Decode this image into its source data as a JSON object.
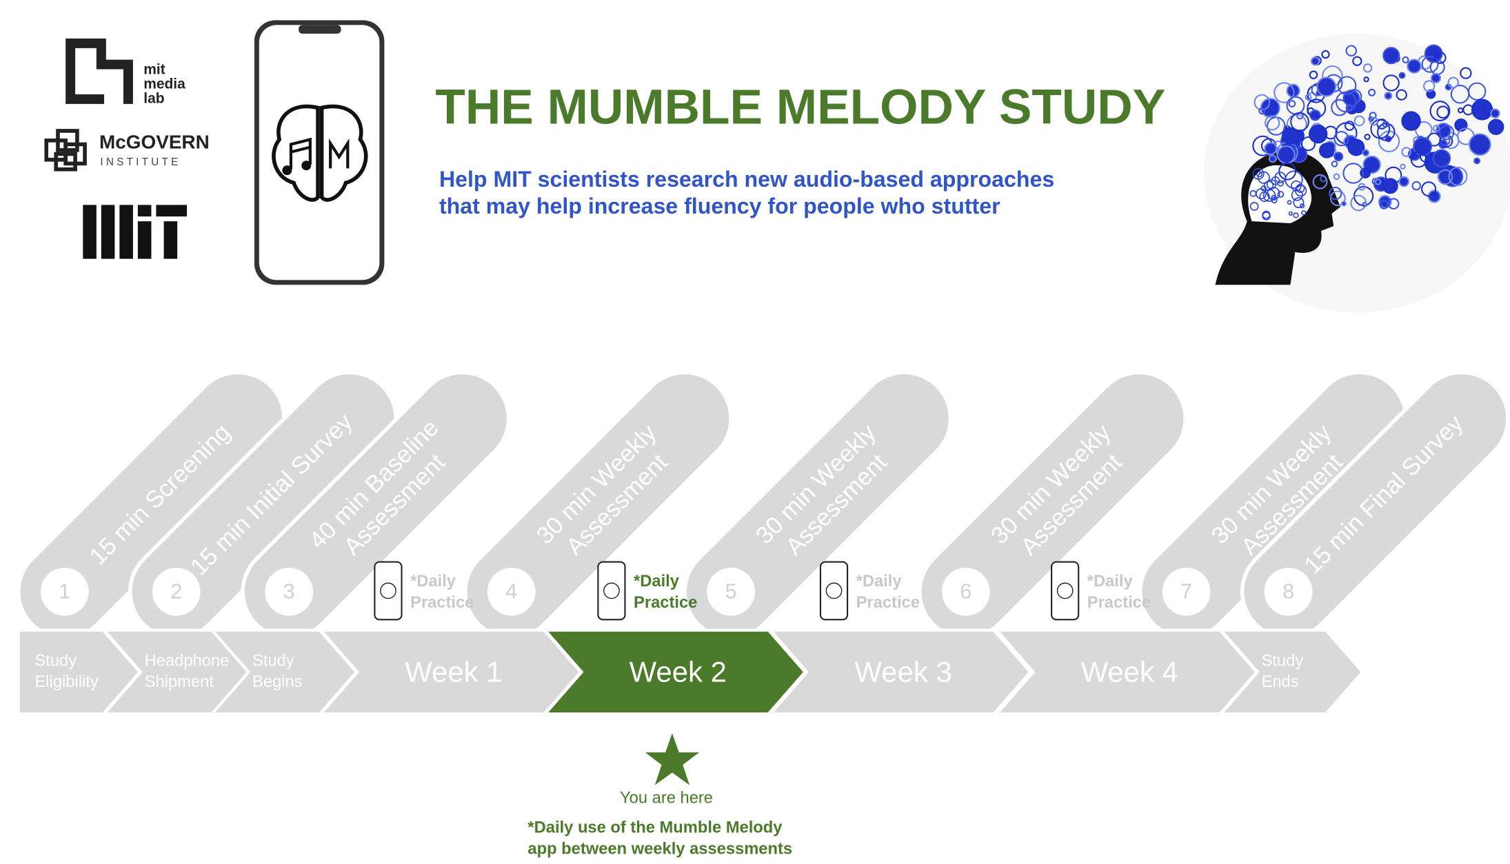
{
  "logos": {
    "media_lab": [
      "mit",
      "media",
      "lab"
    ],
    "mcgovern": "McGOVERN",
    "institute": "INSTITUTE"
  },
  "header": {
    "title": "THE MUMBLE MELODY STUDY",
    "subtitle": [
      "Help MIT scientists research new audio-based approaches",
      "that may help increase fluency for people who stutter"
    ]
  },
  "steps": [
    {
      "number": 1,
      "label": [
        "15 min Screening"
      ]
    },
    {
      "number": 2,
      "label": [
        "15 min Initial Survey"
      ]
    },
    {
      "number": 3,
      "label": [
        "40 min Baseline",
        "Assessment"
      ]
    },
    {
      "number": 4,
      "label": [
        "30 min Weekly",
        "Assessment"
      ]
    },
    {
      "number": 5,
      "label": [
        "30 min Weekly",
        "Assessment"
      ]
    },
    {
      "number": 6,
      "label": [
        "30 min Weekly",
        "Assessment"
      ]
    },
    {
      "number": 7,
      "label": [
        "30 min Weekly",
        "Assessment"
      ]
    },
    {
      "number": 8,
      "label": [
        "15 min Final Survey"
      ]
    }
  ],
  "daily_practice": [
    {
      "label": [
        "*Daily",
        "Practice"
      ],
      "color": "#c8c8c8"
    },
    {
      "label": [
        "*Daily",
        "Practice"
      ],
      "color": "#4a7a2a"
    },
    {
      "label": [
        "*Daily",
        "Practice"
      ],
      "color": "#c8c8c8"
    },
    {
      "label": [
        "*Daily",
        "Practice"
      ],
      "color": "#c8c8c8"
    }
  ],
  "stages": [
    {
      "label": [
        "Study",
        "Eligibility"
      ],
      "color": "#d9d9d9"
    },
    {
      "label": [
        "Headphone",
        "Shipment"
      ],
      "color": "#d9d9d9"
    },
    {
      "label": [
        "Study",
        "Begins"
      ],
      "color": "#d9d9d9"
    },
    {
      "label": [
        "Week 1"
      ],
      "color": "#d9d9d9"
    },
    {
      "label": [
        "Week 2"
      ],
      "color": "#4a7a2a"
    },
    {
      "label": [
        "Week 3"
      ],
      "color": "#d9d9d9"
    },
    {
      "label": [
        "Week 4"
      ],
      "color": "#d9d9d9"
    },
    {
      "label": [
        "Study",
        "Ends"
      ],
      "color": "#d9d9d9"
    }
  ],
  "you_are_here": "You are here",
  "footnote": [
    "*Daily use of the Mumble Melody",
    "app between weekly assessments"
  ]
}
